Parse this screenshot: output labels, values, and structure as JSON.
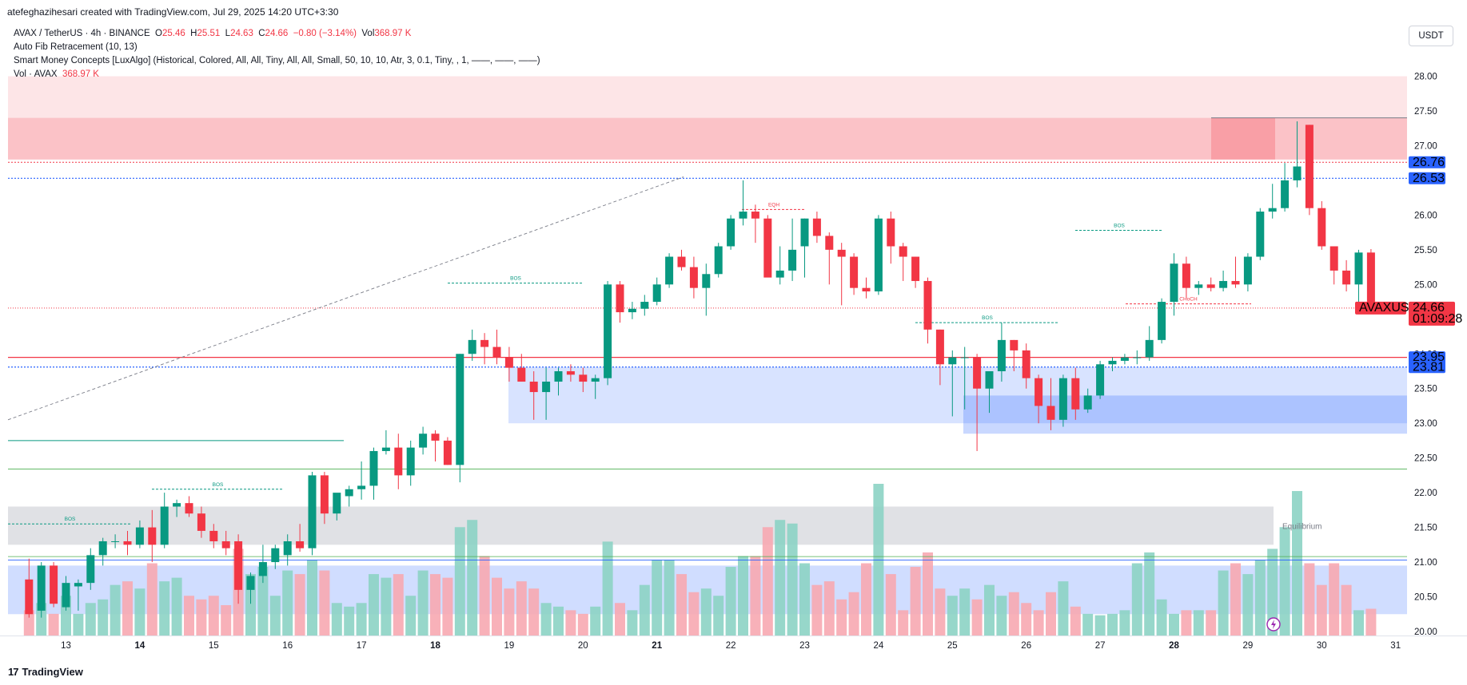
{
  "header": {
    "created_by": "atefeghazihesari created with TradingView.com, Jul 29, 2025 14:20 UTC+3:30"
  },
  "legend": {
    "symbol": "AVAX / TetherUS · 4h · BINANCE",
    "o_label": "O",
    "o_value": "25.46",
    "h_label": "H",
    "h_value": "25.51",
    "l_label": "L",
    "l_value": "24.63",
    "c_label": "C",
    "c_value": "24.66",
    "change": "−0.80 (−3.14%)",
    "vol_label": "Vol",
    "vol_value": "368.97 K",
    "indicator1": "Auto Fib Retracement (10, 13)",
    "indicator2": "Smart Money Concepts [LuxAlgo] (Historical, Colored, All, All, Tiny, All, All, Small, 50, 10, 10, Atr, 3, 0.1, Tiny, , 1, ——, ——, ——)",
    "indicator3_label": "Vol · AVAX",
    "indicator3_value": "368.97 K"
  },
  "currency_button": "USDT",
  "footer_logo": "TradingView",
  "footer_mark": "17",
  "colors": {
    "up": "#089981",
    "down": "#f23645",
    "vol_up": "#8cd3c4",
    "vol_down": "#f7a9b1",
    "premium_zone": "#f23645",
    "discount_zone": "#2962ff",
    "equilibrium": "#b2b5be",
    "blue_line": "#2962ff",
    "red_line": "#f23645"
  },
  "chart_data": {
    "type": "candlestick",
    "timeframe": "4h",
    "y_axis": {
      "ticks": [
        "28.00",
        "27.50",
        "27.00",
        "26.50",
        "26.00",
        "25.50",
        "25.00",
        "24.50",
        "24.00",
        "23.50",
        "23.00",
        "22.50",
        "22.00",
        "21.50",
        "21.00",
        "20.50",
        "20.00"
      ],
      "ylim": [
        20.0,
        28.0
      ]
    },
    "x_axis": {
      "ticks": [
        "13",
        "14",
        "15",
        "16",
        "17",
        "18",
        "19",
        "20",
        "21",
        "22",
        "23",
        "24",
        "25",
        "26",
        "27",
        "28",
        "29",
        "30",
        "31"
      ],
      "bold_ticks": [
        "14",
        "18",
        "21",
        "28"
      ]
    },
    "candles_ohlc": [
      [
        20.75,
        21.05,
        20.2,
        20.25
      ],
      [
        20.3,
        21.0,
        20.2,
        20.95
      ],
      [
        20.95,
        21.0,
        20.35,
        20.4
      ],
      [
        20.35,
        20.8,
        20.3,
        20.7
      ],
      [
        20.65,
        20.75,
        20.3,
        20.7
      ],
      [
        20.7,
        21.2,
        20.6,
        21.1
      ],
      [
        21.1,
        21.35,
        20.95,
        21.3
      ],
      [
        21.3,
        21.4,
        21.2,
        21.3
      ],
      [
        21.3,
        21.45,
        21.1,
        21.25
      ],
      [
        21.25,
        21.6,
        21.2,
        21.5
      ],
      [
        21.5,
        21.75,
        21.0,
        21.25
      ],
      [
        21.25,
        22.0,
        21.2,
        21.8
      ],
      [
        21.8,
        21.9,
        21.65,
        21.85
      ],
      [
        21.85,
        21.95,
        21.65,
        21.7
      ],
      [
        21.7,
        21.8,
        21.35,
        21.45
      ],
      [
        21.45,
        21.55,
        21.2,
        21.3
      ],
      [
        21.3,
        21.45,
        21.1,
        21.2
      ],
      [
        21.3,
        21.4,
        20.4,
        20.6
      ],
      [
        20.6,
        20.85,
        20.4,
        20.8
      ],
      [
        20.8,
        21.25,
        20.7,
        21.0
      ],
      [
        21.0,
        21.25,
        20.9,
        21.2
      ],
      [
        21.1,
        21.4,
        20.95,
        21.3
      ],
      [
        21.3,
        21.55,
        21.15,
        21.2
      ],
      [
        21.2,
        22.3,
        21.1,
        22.25
      ],
      [
        22.25,
        22.3,
        21.55,
        21.7
      ],
      [
        21.7,
        21.95,
        21.6,
        22.0
      ],
      [
        21.95,
        22.1,
        21.8,
        22.05
      ],
      [
        22.05,
        22.45,
        21.9,
        22.1
      ],
      [
        22.1,
        22.65,
        21.9,
        22.6
      ],
      [
        22.6,
        22.9,
        22.55,
        22.65
      ],
      [
        22.65,
        22.85,
        22.05,
        22.25
      ],
      [
        22.25,
        22.75,
        22.1,
        22.65
      ],
      [
        22.65,
        22.95,
        22.55,
        22.85
      ],
      [
        22.85,
        22.9,
        22.45,
        22.75
      ],
      [
        22.75,
        22.8,
        22.4,
        22.4
      ],
      [
        22.4,
        24.0,
        22.15,
        24.0
      ],
      [
        24.0,
        24.35,
        23.9,
        24.2
      ],
      [
        24.2,
        24.3,
        23.85,
        24.1
      ],
      [
        24.1,
        24.35,
        23.85,
        23.95
      ],
      [
        23.95,
        24.1,
        23.6,
        23.8
      ],
      [
        23.8,
        24.0,
        23.6,
        23.6
      ],
      [
        23.6,
        23.75,
        23.05,
        23.45
      ],
      [
        23.45,
        23.8,
        23.05,
        23.6
      ],
      [
        23.6,
        23.8,
        23.4,
        23.75
      ],
      [
        23.75,
        23.85,
        23.6,
        23.7
      ],
      [
        23.7,
        23.8,
        23.45,
        23.6
      ],
      [
        23.6,
        23.7,
        23.35,
        23.65
      ],
      [
        23.65,
        25.05,
        23.55,
        25.0
      ],
      [
        25.0,
        25.05,
        24.45,
        24.6
      ],
      [
        24.6,
        24.75,
        24.5,
        24.65
      ],
      [
        24.65,
        24.85,
        24.55,
        24.75
      ],
      [
        24.75,
        25.1,
        24.7,
        25.0
      ],
      [
        25.0,
        25.45,
        24.95,
        25.4
      ],
      [
        25.4,
        25.5,
        25.2,
        25.25
      ],
      [
        25.25,
        25.4,
        24.8,
        24.95
      ],
      [
        24.95,
        25.3,
        24.55,
        25.15
      ],
      [
        25.15,
        25.6,
        25.1,
        25.55
      ],
      [
        25.55,
        26.0,
        25.5,
        25.95
      ],
      [
        25.95,
        26.5,
        25.85,
        26.05
      ],
      [
        26.05,
        26.15,
        25.6,
        25.95
      ],
      [
        25.95,
        26.0,
        25.4,
        25.1
      ],
      [
        25.1,
        25.55,
        25.0,
        25.2
      ],
      [
        25.2,
        25.95,
        25.05,
        25.5
      ],
      [
        25.55,
        25.95,
        25.1,
        25.95
      ],
      [
        25.95,
        26.05,
        25.6,
        25.7
      ],
      [
        25.7,
        25.75,
        25.0,
        25.5
      ],
      [
        25.5,
        25.6,
        24.7,
        25.4
      ],
      [
        25.4,
        25.45,
        24.85,
        24.95
      ],
      [
        24.95,
        25.1,
        24.8,
        24.9
      ],
      [
        24.9,
        26.0,
        24.85,
        25.95
      ],
      [
        25.95,
        26.05,
        25.3,
        25.55
      ],
      [
        25.55,
        25.6,
        25.05,
        25.4
      ],
      [
        25.4,
        25.4,
        24.95,
        25.05
      ],
      [
        25.05,
        25.1,
        24.15,
        24.35
      ],
      [
        24.35,
        24.35,
        23.55,
        23.85
      ],
      [
        23.85,
        24.05,
        23.1,
        23.95
      ],
      [
        23.95,
        24.1,
        23.2,
        23.95
      ],
      [
        23.95,
        24.0,
        22.6,
        23.5
      ],
      [
        23.5,
        23.75,
        23.15,
        23.75
      ],
      [
        23.75,
        24.45,
        23.6,
        24.2
      ],
      [
        24.2,
        24.2,
        23.75,
        24.05
      ],
      [
        24.05,
        24.15,
        23.5,
        23.65
      ],
      [
        23.65,
        23.7,
        23.0,
        23.25
      ],
      [
        23.25,
        23.65,
        22.9,
        23.05
      ],
      [
        23.05,
        23.7,
        22.95,
        23.65
      ],
      [
        23.65,
        23.8,
        23.05,
        23.2
      ],
      [
        23.2,
        23.5,
        23.15,
        23.4
      ],
      [
        23.4,
        23.9,
        23.35,
        23.85
      ],
      [
        23.85,
        23.95,
        23.75,
        23.9
      ],
      [
        23.9,
        24.0,
        23.85,
        23.95
      ],
      [
        23.95,
        24.05,
        23.85,
        23.95
      ],
      [
        23.95,
        24.4,
        23.9,
        24.2
      ],
      [
        24.2,
        24.8,
        24.15,
        24.75
      ],
      [
        24.75,
        25.45,
        24.55,
        25.3
      ],
      [
        25.3,
        25.4,
        24.8,
        24.95
      ],
      [
        24.95,
        25.05,
        24.85,
        25.0
      ],
      [
        25.0,
        25.1,
        24.9,
        24.95
      ],
      [
        24.95,
        25.2,
        24.9,
        25.05
      ],
      [
        25.05,
        25.4,
        24.95,
        25.0
      ],
      [
        25.0,
        25.45,
        24.9,
        25.4
      ],
      [
        25.4,
        26.1,
        25.35,
        26.05
      ],
      [
        26.05,
        26.45,
        25.95,
        26.1
      ],
      [
        26.1,
        26.75,
        26.05,
        26.5
      ],
      [
        26.5,
        27.35,
        26.4,
        26.7
      ],
      [
        27.3,
        27.3,
        26.0,
        26.1
      ],
      [
        26.1,
        26.2,
        25.5,
        25.55
      ],
      [
        25.55,
        25.55,
        25.0,
        25.2
      ],
      [
        25.2,
        25.35,
        24.9,
        25.0
      ],
      [
        25.0,
        25.5,
        24.75,
        25.46
      ],
      [
        25.46,
        25.51,
        24.63,
        24.66
      ]
    ],
    "volumes": [
      0.35,
      0.45,
      0.3,
      0.55,
      0.3,
      0.45,
      0.5,
      0.7,
      0.75,
      0.65,
      1.0,
      0.75,
      0.8,
      0.55,
      0.5,
      0.55,
      0.42,
      1.2,
      0.85,
      0.95,
      0.55,
      0.9,
      0.85,
      1.05,
      0.9,
      0.45,
      0.4,
      0.45,
      0.85,
      0.8,
      0.85,
      0.55,
      0.9,
      0.85,
      0.8,
      1.5,
      1.6,
      1.1,
      0.8,
      0.65,
      0.75,
      0.65,
      0.45,
      0.4,
      0.35,
      0.3,
      0.4,
      1.3,
      0.45,
      0.35,
      0.7,
      1.05,
      1.05,
      0.85,
      0.6,
      0.65,
      0.55,
      0.95,
      1.1,
      1.1,
      1.5,
      1.6,
      1.55,
      1.0,
      0.7,
      0.75,
      0.5,
      0.6,
      1.0,
      2.1,
      0.85,
      0.35,
      0.95,
      1.15,
      0.65,
      0.55,
      0.65,
      0.5,
      0.7,
      0.55,
      0.6,
      0.45,
      0.35,
      0.6,
      0.75,
      0.4,
      0.3,
      0.28,
      0.3,
      0.35,
      1.0,
      1.15,
      0.5,
      0.3,
      0.35,
      0.35,
      0.35,
      0.9,
      1.0,
      0.85,
      1.05,
      1.2,
      1.5,
      2.0,
      1.0,
      0.7,
      1.0,
      0.7,
      0.35,
      0.37
    ],
    "horizontal_levels": {
      "red_top": "26.76",
      "blue_top": "26.53",
      "current_price": "24.66",
      "red_mid": "23.95",
      "blue_mid": "23.81"
    },
    "price_labels": {
      "symbol_tag": "AVAXUSDT",
      "current": "24.66",
      "countdown": "01:09:28",
      "p1": "26.76",
      "p2": "26.53",
      "p3": "23.95",
      "p4": "23.81"
    },
    "smc_labels": {
      "bos": "BOS",
      "eqh": "EQH",
      "choch": "CHoCH",
      "equilibrium": "Equilibrium"
    }
  }
}
